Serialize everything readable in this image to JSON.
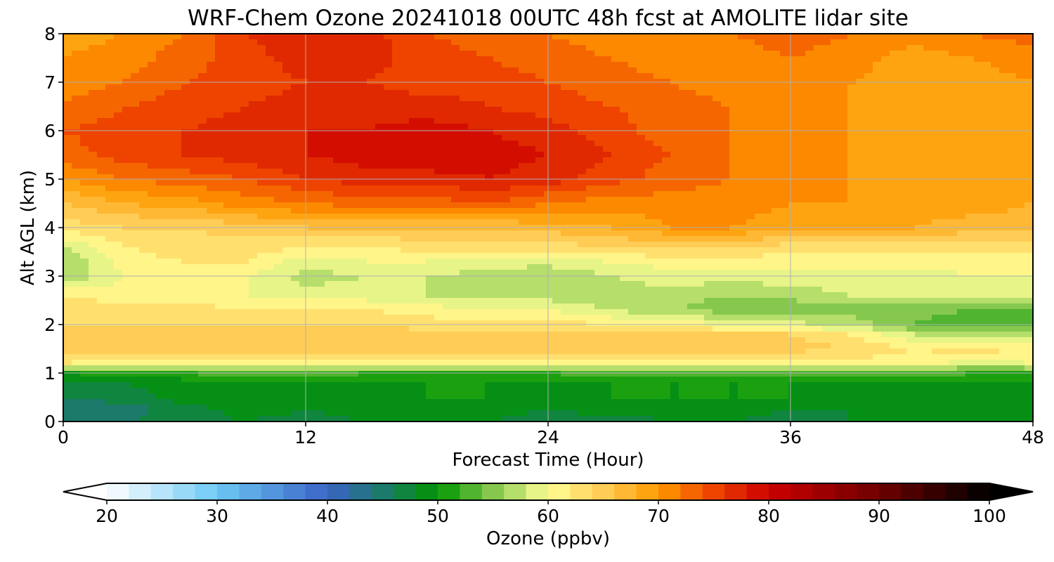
{
  "chart_data": {
    "type": "heatmap",
    "title": "WRF-Chem Ozone  20241018 00UTC 48h fcst at AMOLITE lidar site",
    "xlabel": "Forecast Time (Hour)",
    "ylabel": "Alt AGL (km)",
    "xlim": [
      0,
      48
    ],
    "ylim": [
      0,
      8
    ],
    "xticks": [
      0,
      12,
      24,
      36,
      48
    ],
    "yticks": [
      0,
      1,
      2,
      3,
      4,
      5,
      6,
      7,
      8
    ],
    "grid": true,
    "x": [
      0,
      3,
      6,
      9,
      12,
      15,
      18,
      21,
      24,
      27,
      30,
      33,
      36,
      39,
      42,
      45,
      48
    ],
    "y": [
      0,
      0.25,
      0.5,
      0.8,
      1.0,
      1.2,
      1.5,
      1.8,
      2.0,
      2.3,
      2.6,
      3.0,
      3.3,
      3.6,
      4.0,
      4.5,
      5.0,
      5.5,
      6.0,
      6.5,
      7.0,
      7.5,
      8.0
    ],
    "values": [
      [
        44,
        46,
        47,
        48,
        47,
        48,
        48,
        48,
        47,
        47,
        48,
        48,
        47,
        48,
        48,
        49,
        49
      ],
      [
        44,
        45,
        47,
        49,
        48,
        49,
        49,
        49,
        48,
        49,
        49,
        49,
        48,
        48,
        48,
        49,
        49
      ],
      [
        46,
        47,
        49,
        50,
        49,
        49,
        50,
        50,
        49,
        50,
        50,
        50,
        50,
        49,
        49,
        49,
        49
      ],
      [
        47,
        48,
        49,
        50,
        50,
        50,
        50,
        50,
        50,
        50,
        50,
        50,
        50,
        50,
        50,
        50,
        50
      ],
      [
        50,
        51,
        52,
        53,
        53,
        52,
        52,
        51,
        52,
        53,
        54,
        54,
        54,
        53,
        53,
        52,
        52
      ],
      [
        62,
        61,
        61,
        60,
        60,
        61,
        61,
        61,
        61,
        60,
        60,
        60,
        60,
        61,
        61,
        59,
        60
      ],
      [
        65,
        65,
        65,
        65,
        65,
        65,
        65,
        65,
        65,
        65,
        65,
        65,
        65,
        64,
        62,
        63,
        62
      ],
      [
        65,
        65,
        65,
        65,
        65,
        65,
        65,
        65,
        65,
        64,
        65,
        64,
        64,
        62,
        58,
        57,
        57
      ],
      [
        64,
        64,
        64,
        64,
        64,
        64,
        63,
        63,
        63,
        62,
        61,
        60,
        59,
        57,
        54,
        52,
        52
      ],
      [
        63,
        63,
        63,
        62,
        62,
        62,
        61,
        60,
        60,
        58,
        56,
        55,
        54,
        55,
        55,
        54,
        54
      ],
      [
        62,
        61,
        61,
        60,
        59,
        59,
        58,
        58,
        57,
        57,
        57,
        56,
        57,
        58,
        58,
        58,
        58
      ],
      [
        56,
        60,
        61,
        60,
        57,
        58,
        58,
        57,
        56,
        58,
        59,
        59,
        59,
        59,
        59,
        60,
        60
      ],
      [
        56,
        61,
        62,
        62,
        59,
        60,
        60,
        59,
        59,
        60,
        61,
        61,
        61,
        61,
        61,
        61,
        61
      ],
      [
        58,
        62,
        63,
        63,
        62,
        62,
        63,
        63,
        63,
        64,
        64,
        64,
        63,
        63,
        63,
        63,
        63
      ],
      [
        63,
        64,
        64,
        65,
        66,
        66,
        66,
        66,
        67,
        68,
        70,
        70,
        69,
        68,
        68,
        67,
        67
      ],
      [
        66,
        68,
        69,
        71,
        72,
        73,
        73,
        74,
        72,
        71,
        71,
        71,
        70,
        70,
        69,
        69,
        68
      ],
      [
        70,
        72,
        73,
        74,
        76,
        77,
        77,
        78,
        77,
        75,
        73,
        72,
        71,
        70,
        69,
        69,
        68
      ],
      [
        73,
        75,
        76,
        77,
        78,
        79,
        80,
        79,
        78,
        76,
        74,
        72,
        71,
        70,
        69,
        69,
        69
      ],
      [
        74,
        75,
        76,
        77,
        78,
        78,
        79,
        78,
        77,
        75,
        73,
        72,
        71,
        70,
        69,
        69,
        69
      ],
      [
        72,
        74,
        75,
        76,
        77,
        77,
        77,
        76,
        75,
        74,
        73,
        72,
        71,
        70,
        69,
        69,
        69
      ],
      [
        71,
        72,
        74,
        75,
        76,
        76,
        75,
        75,
        74,
        73,
        72,
        71,
        71,
        70,
        69,
        69,
        70
      ],
      [
        70,
        71,
        73,
        75,
        77,
        77,
        75,
        74,
        73,
        72,
        71,
        71,
        72,
        71,
        69,
        70,
        71
      ],
      [
        69,
        70,
        72,
        76,
        78,
        77,
        74,
        73,
        72,
        71,
        71,
        72,
        73,
        72,
        71,
        72,
        73
      ]
    ],
    "colorbar": {
      "label": "Ozone  (ppbv)",
      "min": 20,
      "max": 100,
      "step": 2,
      "extend": "both",
      "ticks": [
        20,
        30,
        40,
        50,
        60,
        70,
        80,
        90,
        100
      ],
      "stops": [
        {
          "v": 20,
          "c": "#ffffff"
        },
        {
          "v": 30,
          "c": "#6cc8f4"
        },
        {
          "v": 40,
          "c": "#3a64c6"
        },
        {
          "v": 45,
          "c": "#1b7a6a"
        },
        {
          "v": 50,
          "c": "#009600"
        },
        {
          "v": 55,
          "c": "#86c84e"
        },
        {
          "v": 60,
          "c": "#ffff96"
        },
        {
          "v": 65,
          "c": "#ffcc55"
        },
        {
          "v": 70,
          "c": "#ff9a00"
        },
        {
          "v": 75,
          "c": "#ee4400"
        },
        {
          "v": 80,
          "c": "#cc0000"
        },
        {
          "v": 90,
          "c": "#6e0000"
        },
        {
          "v": 100,
          "c": "#000000"
        }
      ]
    }
  }
}
